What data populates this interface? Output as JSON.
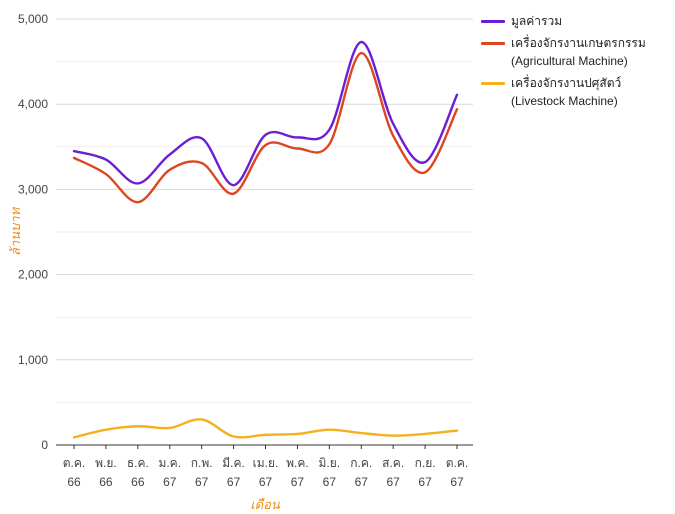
{
  "chart_data": {
    "type": "line",
    "xlabel": "เดือน",
    "ylabel": "ล้านบาท",
    "ylim": [
      0,
      5000
    ],
    "yticks": [
      "0",
      "1,000",
      "2,000",
      "3,000",
      "4,000",
      "5,000"
    ],
    "grid": true,
    "legend_position": "right",
    "categories": [
      [
        "ต.ค.",
        "66"
      ],
      [
        "พ.ย.",
        "66"
      ],
      [
        "ธ.ค.",
        "66"
      ],
      [
        "ม.ค.",
        "67"
      ],
      [
        "ก.พ.",
        "67"
      ],
      [
        "มี.ค.",
        "67"
      ],
      [
        "เม.ย.",
        "67"
      ],
      [
        "พ.ค.",
        "67"
      ],
      [
        "มิ.ย.",
        "67"
      ],
      [
        "ก.ค.",
        "67"
      ],
      [
        "ส.ค.",
        "67"
      ],
      [
        "ก.ย.",
        "67"
      ],
      [
        "ต.ค.",
        "67"
      ]
    ],
    "series": [
      {
        "name": "มูลค่ารวม",
        "color": "#6a1ed6",
        "values": [
          3450,
          3350,
          3070,
          3410,
          3600,
          3050,
          3640,
          3610,
          3700,
          4730,
          3770,
          3320,
          4110
        ]
      },
      {
        "name": "เครื่องจักรงานเกษตรกรรม (Agricultural Machine)",
        "color": "#dd4622",
        "values": [
          3370,
          3180,
          2850,
          3230,
          3310,
          2950,
          3520,
          3480,
          3530,
          4600,
          3630,
          3200,
          3940
        ]
      },
      {
        "name": "เครื่องจักรงานปศุสัตว์ (Livestock Machine)",
        "color": "#f5b01b",
        "values": [
          90,
          180,
          220,
          200,
          300,
          100,
          120,
          130,
          180,
          140,
          110,
          130,
          170
        ]
      }
    ]
  }
}
